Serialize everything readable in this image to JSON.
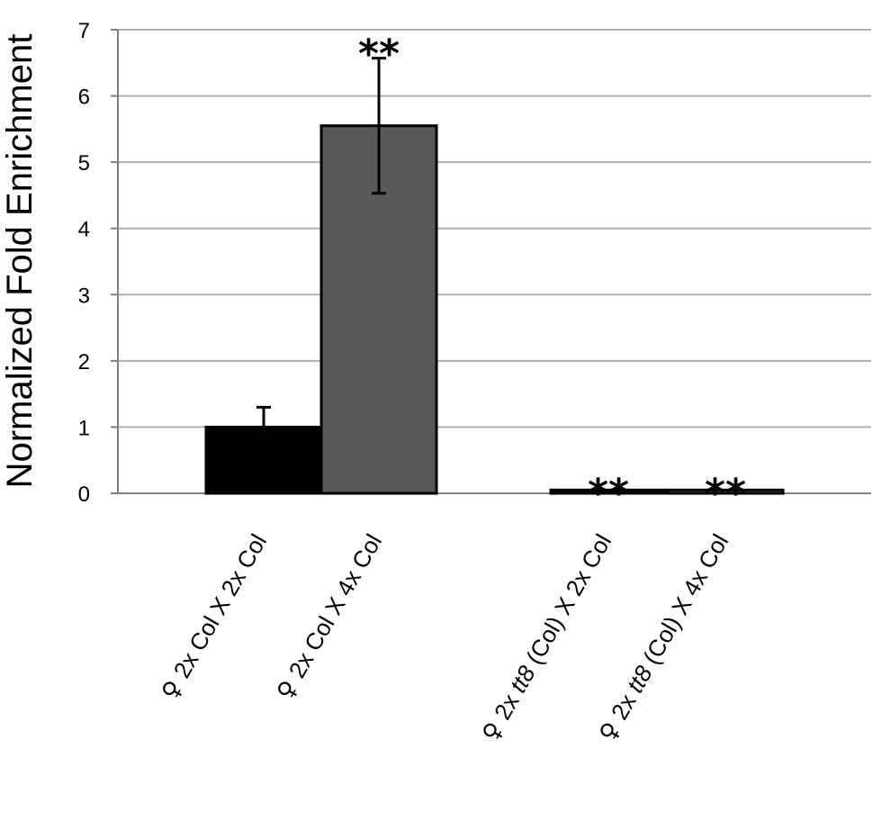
{
  "chart_data": {
    "type": "bar",
    "ylabel": "Normalized Fold Enrichment",
    "xlabel": "",
    "ylim": [
      0,
      7
    ],
    "yticks": [
      "0",
      "1",
      "2",
      "3",
      "4",
      "5",
      "6",
      "7"
    ],
    "grid": true,
    "categories": [
      {
        "symbol": "♀",
        "prefix": "2x Col X 2x Col",
        "italic": "",
        "suffix": ""
      },
      {
        "symbol": "♀",
        "prefix": "2x Col X 4x Col",
        "italic": "",
        "suffix": ""
      },
      {
        "symbol": "♀",
        "prefix": "2x ",
        "italic": "tt8",
        "suffix": " (Col) X 2x Col"
      },
      {
        "symbol": "♀",
        "prefix": "2x ",
        "italic": "tt8",
        "suffix": " (Col) X 4x Col"
      }
    ],
    "values": [
      1.0,
      5.55,
      0.05,
      0.05
    ],
    "errors": [
      0.3,
      1.02,
      0,
      0
    ],
    "significance": [
      "",
      "**",
      "**",
      "**"
    ],
    "colors": [
      "#000000",
      "#595959",
      "#000000",
      "#595959"
    ]
  }
}
